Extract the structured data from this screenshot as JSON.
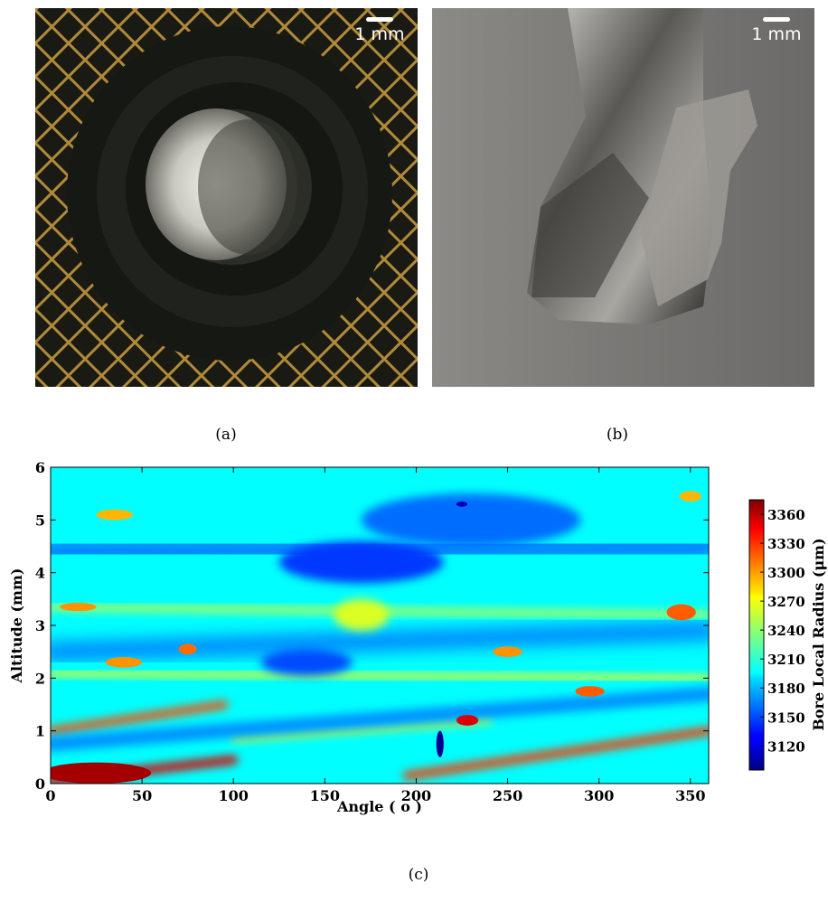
{
  "panels": {
    "a": {
      "caption": "(a)",
      "scale_label": "1 mm"
    },
    "b": {
      "caption": "(b)",
      "scale_label": "1 mm"
    },
    "c": {
      "caption": "(c)"
    }
  },
  "chart_data": {
    "type": "heatmap",
    "title": "",
    "xlabel": "Angle ( o )",
    "ylabel": "Altitude (mm)",
    "xlim": [
      0,
      360
    ],
    "ylim": [
      0,
      6
    ],
    "x_ticks": [
      0,
      50,
      100,
      150,
      200,
      250,
      300,
      350
    ],
    "y_ticks": [
      0,
      1,
      2,
      3,
      4,
      5,
      6
    ],
    "colorbar": {
      "label": "Bore Local Radius (μm)",
      "range": [
        3095,
        3375
      ],
      "ticks": [
        3120,
        3150,
        3180,
        3210,
        3240,
        3270,
        3300,
        3330,
        3360
      ],
      "colormap": "jet"
    },
    "background_value": 3200,
    "features": [
      {
        "kind": "band",
        "x0": 0,
        "y0": 0.05,
        "x1": 100,
        "y1": 0.45,
        "value": 3350,
        "thickness": 0.17
      },
      {
        "kind": "band",
        "x0": 0,
        "y0": 1.0,
        "x1": 95,
        "y1": 1.5,
        "value": 3320,
        "thickness": 0.15
      },
      {
        "kind": "band",
        "x0": 195,
        "y0": 0.15,
        "x1": 360,
        "y1": 1.0,
        "value": 3325,
        "thickness": 0.16
      },
      {
        "kind": "band",
        "x0": 100,
        "y0": 0.85,
        "x1": 240,
        "y1": 1.2,
        "value": 3275,
        "thickness": 0.1
      },
      {
        "kind": "band",
        "x0": 0,
        "y0": 2.1,
        "x1": 360,
        "y1": 2.0,
        "value": 3265,
        "thickness": 0.12
      },
      {
        "kind": "band",
        "x0": 0,
        "y0": 3.35,
        "x1": 360,
        "y1": 3.2,
        "value": 3245,
        "thickness": 0.15
      },
      {
        "kind": "band",
        "x0": 0,
        "y0": 0.75,
        "x1": 360,
        "y1": 1.7,
        "value": 3170,
        "thickness": 0.28
      },
      {
        "kind": "band",
        "x0": 0,
        "y0": 2.5,
        "x1": 360,
        "y1": 2.9,
        "value": 3165,
        "thickness": 0.35
      },
      {
        "kind": "band",
        "x0": 0,
        "y0": 4.4,
        "x1": 360,
        "y1": 4.5,
        "value": 3165,
        "thickness": 0.5
      },
      {
        "kind": "blob",
        "x": 170,
        "y": 4.2,
        "rx": 45,
        "ry": 0.4,
        "value": 3145
      },
      {
        "kind": "blob",
        "x": 140,
        "y": 2.3,
        "rx": 25,
        "ry": 0.25,
        "value": 3150
      },
      {
        "kind": "blob",
        "x": 230,
        "y": 5.0,
        "rx": 60,
        "ry": 0.5,
        "value": 3160
      },
      {
        "kind": "blob",
        "x": 25,
        "y": 0.2,
        "rx": 30,
        "ry": 0.2,
        "value": 3365
      },
      {
        "kind": "blob",
        "x": 228,
        "y": 1.2,
        "rx": 6,
        "ry": 0.1,
        "value": 3350
      },
      {
        "kind": "blob",
        "x": 345,
        "y": 3.25,
        "rx": 8,
        "ry": 0.15,
        "value": 3315
      },
      {
        "kind": "blob",
        "x": 295,
        "y": 1.75,
        "rx": 8,
        "ry": 0.1,
        "value": 3315
      },
      {
        "kind": "blob",
        "x": 75,
        "y": 2.55,
        "rx": 5,
        "ry": 0.1,
        "value": 3310
      },
      {
        "kind": "blob",
        "x": 40,
        "y": 2.3,
        "rx": 10,
        "ry": 0.1,
        "value": 3300
      },
      {
        "kind": "blob",
        "x": 15,
        "y": 3.35,
        "rx": 10,
        "ry": 0.08,
        "value": 3300
      },
      {
        "kind": "blob",
        "x": 35,
        "y": 5.1,
        "rx": 10,
        "ry": 0.1,
        "value": 3290
      },
      {
        "kind": "blob",
        "x": 350,
        "y": 5.45,
        "rx": 6,
        "ry": 0.1,
        "value": 3290
      },
      {
        "kind": "blob",
        "x": 170,
        "y": 3.2,
        "rx": 15,
        "ry": 0.3,
        "value": 3260
      },
      {
        "kind": "blob",
        "x": 250,
        "y": 2.5,
        "rx": 8,
        "ry": 0.1,
        "value": 3300
      },
      {
        "kind": "blob",
        "x": 213,
        "y": 0.75,
        "rx": 2,
        "ry": 0.25,
        "value": 3100
      },
      {
        "kind": "blob",
        "x": 225,
        "y": 5.3,
        "rx": 3,
        "ry": 0.05,
        "value": 3110
      }
    ]
  }
}
